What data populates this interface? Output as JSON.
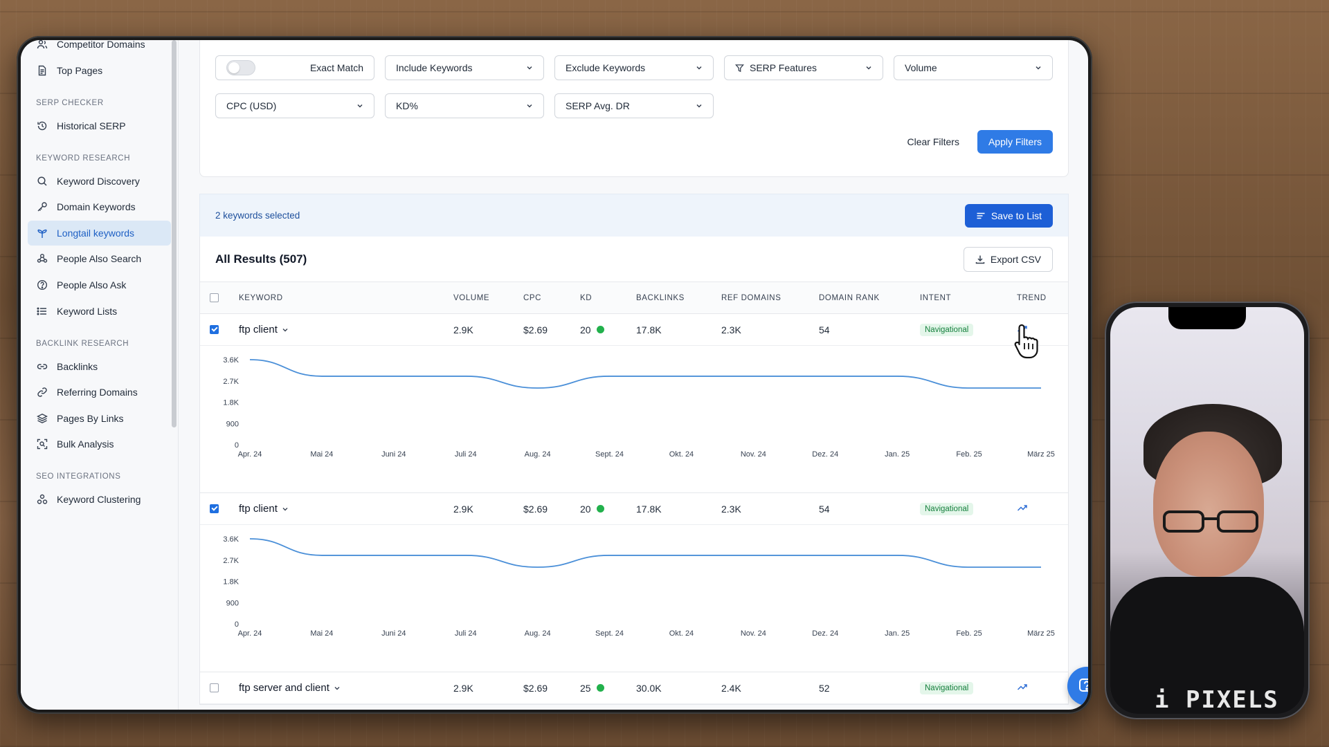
{
  "sidebar": {
    "top_items": [
      {
        "label": "Competitor Domains",
        "icon": "users-icon"
      },
      {
        "label": "Top Pages",
        "icon": "document-icon"
      }
    ],
    "sections": [
      {
        "title": "SERP CHECKER",
        "items": [
          {
            "label": "Historical SERP",
            "icon": "history-icon"
          }
        ]
      },
      {
        "title": "KEYWORD RESEARCH",
        "items": [
          {
            "label": "Keyword Discovery",
            "icon": "search-icon"
          },
          {
            "label": "Domain Keywords",
            "icon": "key-icon"
          },
          {
            "label": "Longtail keywords",
            "icon": "branch-icon",
            "active": true
          },
          {
            "label": "People Also Search",
            "icon": "people-icon"
          },
          {
            "label": "People Also Ask",
            "icon": "question-icon"
          },
          {
            "label": "Keyword Lists",
            "icon": "list-icon"
          }
        ]
      },
      {
        "title": "BACKLINK RESEARCH",
        "items": [
          {
            "label": "Backlinks",
            "icon": "link-icon"
          },
          {
            "label": "Referring Domains",
            "icon": "chain-icon"
          },
          {
            "label": "Pages By Links",
            "icon": "layers-icon"
          },
          {
            "label": "Bulk Analysis",
            "icon": "scan-icon"
          }
        ]
      },
      {
        "title": "SEO INTEGRATIONS",
        "items": [
          {
            "label": "Keyword Clustering",
            "icon": "cluster-icon"
          }
        ]
      }
    ]
  },
  "filters": {
    "exact_match_label": "Exact Match",
    "row1": [
      "Include Keywords",
      "Exclude Keywords",
      "SERP Features",
      "Volume"
    ],
    "row2": [
      "CPC (USD)",
      "KD%",
      "SERP Avg. DR"
    ],
    "clear_label": "Clear Filters",
    "apply_label": "Apply Filters"
  },
  "selection": {
    "text": "2 keywords selected",
    "save_label": "Save to List"
  },
  "results": {
    "title": "All Results (507)",
    "export_label": "Export CSV",
    "columns": [
      "KEYWORD",
      "VOLUME",
      "CPC",
      "KD",
      "BACKLINKS",
      "REF DOMAINS",
      "DOMAIN RANK",
      "INTENT",
      "TREND"
    ],
    "rows": [
      {
        "keyword": "ftp client",
        "volume": "2.9K",
        "cpc": "$2.69",
        "kd": "20",
        "backlinks": "17.8K",
        "ref_domains": "2.3K",
        "domain_rank": "54",
        "intent": "Navigational",
        "checked": true,
        "expanded": true
      },
      {
        "keyword": "ftp client",
        "volume": "2.9K",
        "cpc": "$2.69",
        "kd": "20",
        "backlinks": "17.8K",
        "ref_domains": "2.3K",
        "domain_rank": "54",
        "intent": "Navigational",
        "checked": true,
        "expanded": true
      },
      {
        "keyword": "ftp server and client",
        "volume": "2.9K",
        "cpc": "$2.69",
        "kd": "25",
        "backlinks": "30.0K",
        "ref_domains": "2.4K",
        "domain_rank": "52",
        "intent": "Navigational",
        "checked": false,
        "expanded": false
      }
    ]
  },
  "chart_data": [
    {
      "type": "line",
      "x": [
        "Apr. 24",
        "Mai 24",
        "Juni 24",
        "Juli 24",
        "Aug. 24",
        "Sept. 24",
        "Okt. 24",
        "Nov. 24",
        "Dez. 24",
        "Jan. 25",
        "Feb. 25",
        "März 25"
      ],
      "yticks": [
        "3.6K",
        "2.7K",
        "1.8K",
        "900",
        "0"
      ],
      "ylim": [
        0,
        3600
      ],
      "values": [
        3600,
        2900,
        2900,
        2900,
        2400,
        2900,
        2900,
        2900,
        2900,
        2900,
        2400,
        2400
      ],
      "color": "#4a8fd8"
    },
    {
      "type": "line",
      "x": [
        "Apr. 24",
        "Mai 24",
        "Juni 24",
        "Juli 24",
        "Aug. 24",
        "Sept. 24",
        "Okt. 24",
        "Nov. 24",
        "Dez. 24",
        "Jan. 25",
        "Feb. 25",
        "März 25"
      ],
      "yticks": [
        "3.6K",
        "2.7K",
        "1.8K",
        "900",
        "0"
      ],
      "ylim": [
        0,
        3600
      ],
      "values": [
        3600,
        2900,
        2900,
        2900,
        2400,
        2900,
        2900,
        2900,
        2900,
        2900,
        2400,
        2400
      ],
      "color": "#4a8fd8"
    }
  ],
  "phone": {
    "shirt_text": "i PIXELS"
  },
  "colors": {
    "accent": "#2f7be6",
    "active_bg": "#dbe8f6",
    "intent_green": "#15803d",
    "kd_dot": "#22b14c"
  }
}
